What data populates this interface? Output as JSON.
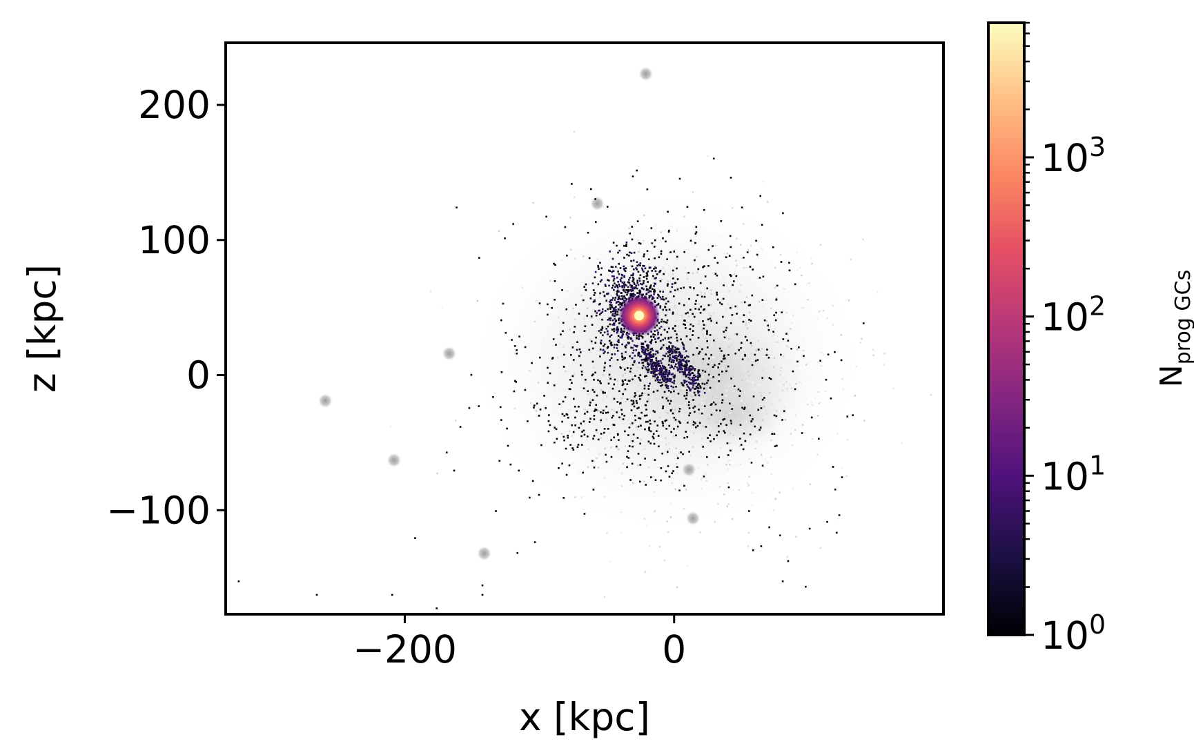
{
  "chart_data": {
    "type": "heatmap",
    "title": "",
    "xlabel": "x [kpc]",
    "ylabel": "z [kpc]",
    "xlim": [
      -333,
      200
    ],
    "ylim": [
      -177,
      246
    ],
    "x_ticks": [
      {
        "value": -200,
        "label": "−200"
      },
      {
        "value": 0,
        "label": "0"
      }
    ],
    "y_ticks": [
      {
        "value": 200,
        "label": "200"
      },
      {
        "value": 100,
        "label": "100"
      },
      {
        "value": 0,
        "label": "0"
      },
      {
        "value": -100,
        "label": "−100"
      }
    ],
    "colorbar": {
      "label_main": "N",
      "label_sub": "prog GCs",
      "scale": "log",
      "colormap": "magma",
      "range": [
        1,
        7000
      ],
      "ticks": [
        {
          "value": 1,
          "base": "10",
          "exp": "0"
        },
        {
          "value": 10,
          "base": "10",
          "exp": "1"
        },
        {
          "value": 100,
          "base": "10",
          "exp": "2"
        },
        {
          "value": 1000,
          "base": "10",
          "exp": "3"
        }
      ]
    },
    "background_blobs_grey": [
      {
        "x": -57,
        "z": 127
      },
      {
        "x": -167,
        "z": 16
      },
      {
        "x": -208,
        "z": -63
      },
      {
        "x": -141,
        "z": -132
      },
      {
        "x": 14,
        "z": -106
      },
      {
        "x": -21,
        "z": 223
      },
      {
        "x": 11,
        "z": -70
      },
      {
        "x": -259,
        "z": -19
      }
    ],
    "density_peak": {
      "x": -26,
      "z": 44,
      "value": 7000
    },
    "colors": {
      "background_halo": "#cfcfcf",
      "axes": "#000000"
    }
  }
}
